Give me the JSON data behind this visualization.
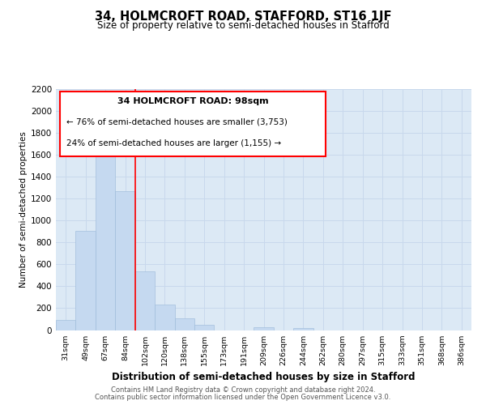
{
  "title": "34, HOLMCROFT ROAD, STAFFORD, ST16 1JF",
  "subtitle": "Size of property relative to semi-detached houses in Stafford",
  "xlabel": "Distribution of semi-detached houses by size in Stafford",
  "ylabel": "Number of semi-detached properties",
  "bar_labels": [
    "31sqm",
    "49sqm",
    "67sqm",
    "84sqm",
    "102sqm",
    "120sqm",
    "138sqm",
    "155sqm",
    "173sqm",
    "191sqm",
    "209sqm",
    "226sqm",
    "244sqm",
    "262sqm",
    "280sqm",
    "297sqm",
    "315sqm",
    "333sqm",
    "351sqm",
    "368sqm",
    "386sqm"
  ],
  "bar_values": [
    93,
    905,
    1720,
    1265,
    535,
    235,
    105,
    45,
    0,
    0,
    25,
    0,
    20,
    0,
    0,
    0,
    0,
    0,
    0,
    0,
    0
  ],
  "bar_color": "#c5d9f0",
  "property_line_x": 3.5,
  "pct_smaller": 76,
  "count_smaller": 3753,
  "pct_larger": 24,
  "count_larger": 1155,
  "annotation_title": "34 HOLMCROFT ROAD: 98sqm",
  "ylim": [
    0,
    2200
  ],
  "yticks": [
    0,
    200,
    400,
    600,
    800,
    1000,
    1200,
    1400,
    1600,
    1800,
    2000,
    2200
  ],
  "footer_line1": "Contains HM Land Registry data © Crown copyright and database right 2024.",
  "footer_line2": "Contains public sector information licensed under the Open Government Licence v3.0.",
  "grid_color": "#c8d8ec",
  "background_color": "#dce9f5",
  "plot_bg_color": "#ffffff"
}
